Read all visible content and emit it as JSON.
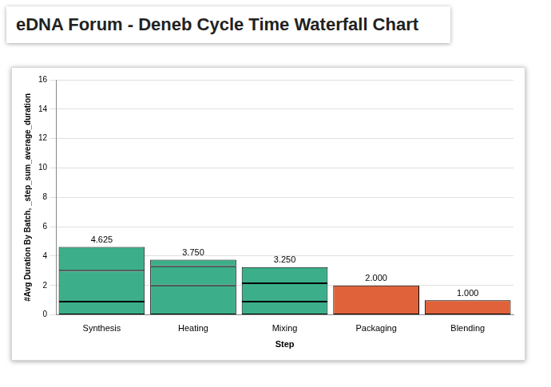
{
  "chart_data": {
    "type": "bar",
    "title": "eDNA Forum - Deneb Cycle Time Waterfall Chart",
    "x_label": "Step",
    "y_label": "#Avg Duration By Batch, _step_sum_average_duration",
    "categories": [
      "Synthesis",
      "Heating",
      "Mixing",
      "Packaging",
      "Blending"
    ],
    "series": [
      {
        "values": [
          0.9,
          2.0,
          0.9,
          2.0,
          1.0
        ],
        "colors": [
          "#3caf8a",
          "#3caf8a",
          "#3caf8a",
          "#e0623a",
          "#e0623a"
        ]
      },
      {
        "values": [
          2.1,
          1.3,
          1.25,
          null,
          null
        ],
        "color": "#3caf8a"
      },
      {
        "values": [
          1.625,
          0.45,
          1.1,
          null,
          null
        ],
        "color": "#3caf8a"
      }
    ],
    "stacked": true,
    "annotations": [
      {
        "x": "Synthesis",
        "y": 4.625,
        "text": "4.625"
      },
      {
        "x": "Heating",
        "y": 3.75,
        "text": "3.750"
      },
      {
        "x": "Mixing",
        "y": 3.25,
        "text": "3.250"
      },
      {
        "x": "Packaging",
        "y": 2.0,
        "text": "2.000"
      },
      {
        "x": "Blending",
        "y": 1.0,
        "text": "1.000"
      }
    ],
    "ylim": [
      0,
      16
    ],
    "yticks": [
      0,
      2,
      4,
      6,
      8,
      10,
      12,
      14,
      16
    ],
    "grid": true
  }
}
